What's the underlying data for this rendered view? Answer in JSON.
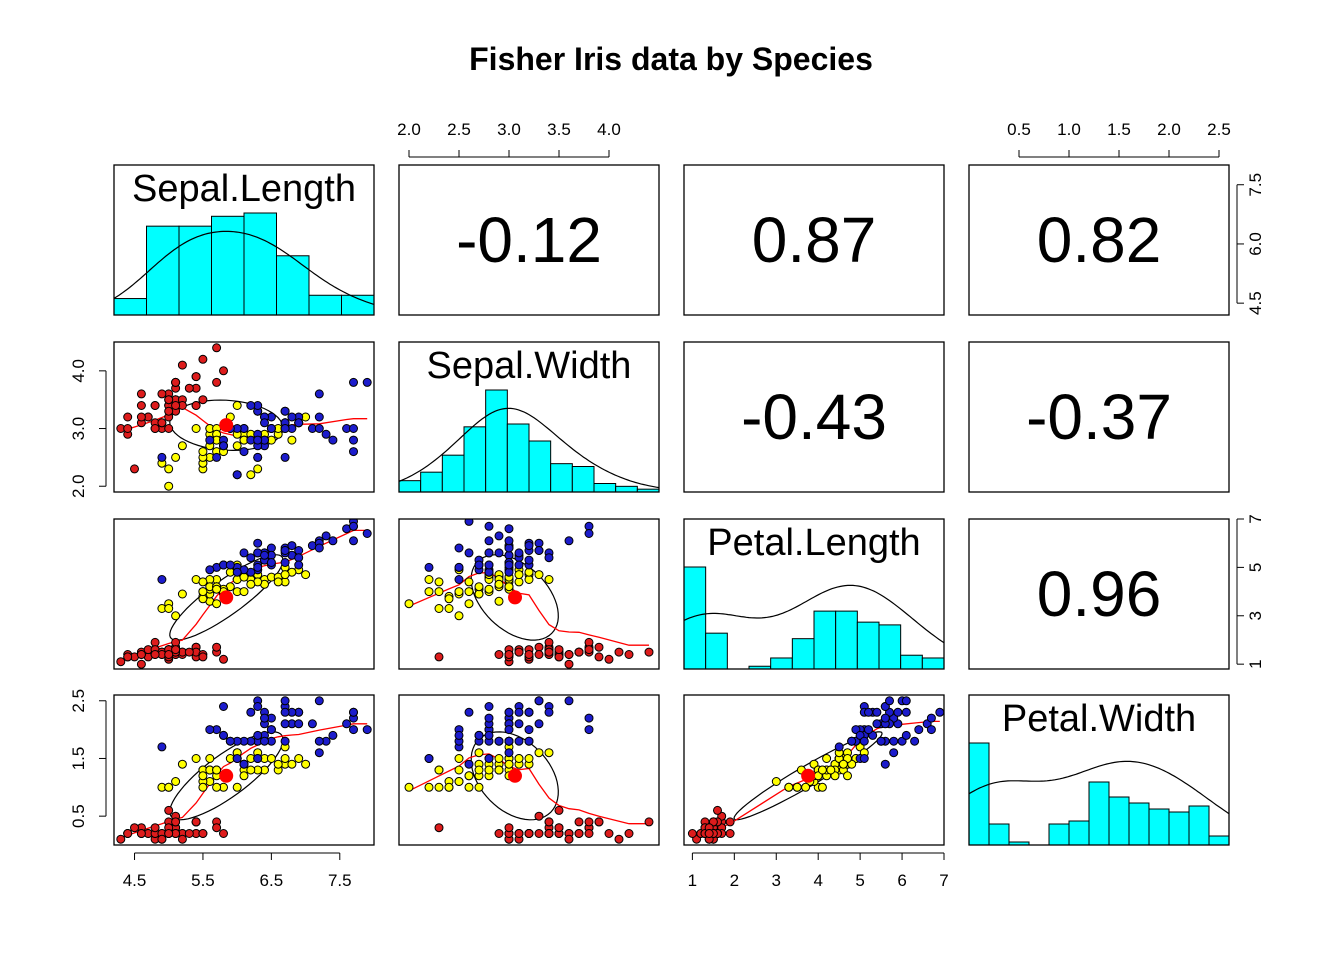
{
  "chart_data": {
    "type": "scatter",
    "title": "Fisher Iris data by Species",
    "colors": {
      "setosa": "#dd1c1c",
      "versicolor": "#ffff00",
      "virginica": "#1c1ccc",
      "hist_fill": "#00ffff",
      "centroid": "#ff0000",
      "smooth": "#ff0000",
      "frame": "#000000"
    },
    "variables": [
      "Sepal.Length",
      "Sepal.Width",
      "Petal.Length",
      "Petal.Width"
    ],
    "ranges": [
      [
        4.2,
        8.0
      ],
      [
        1.9,
        4.5
      ],
      [
        0.8,
        7.0
      ],
      [
        0.0,
        2.6
      ]
    ],
    "ticks": [
      [
        "4.5",
        "5.5",
        "6.5",
        "7.5"
      ],
      [
        "2.0",
        "2.5",
        "3.0",
        "3.5",
        "4.0"
      ],
      [
        "1",
        "2",
        "3",
        "4",
        "5",
        "6",
        "7"
      ],
      [
        "0.5",
        "1.0",
        "1.5",
        "2.0",
        "2.5"
      ]
    ],
    "left_ticks": {
      "row0": [
        "4.5",
        "6.0",
        "7.5"
      ],
      "row1": [
        "2.0",
        "3.0",
        "4.0"
      ],
      "row2": [
        "1",
        "3",
        "5",
        "7"
      ],
      "row3": [
        "0.5",
        "1.5",
        "2.5"
      ]
    },
    "correlations": [
      {
        "row": 0,
        "col": 1,
        "label": "-0.12"
      },
      {
        "row": 0,
        "col": 2,
        "label": "0.87"
      },
      {
        "row": 0,
        "col": 3,
        "label": "0.82"
      },
      {
        "row": 1,
        "col": 2,
        "label": "-0.43"
      },
      {
        "row": 1,
        "col": 3,
        "label": "-0.37"
      },
      {
        "row": 2,
        "col": 3,
        "label": "0.96"
      }
    ],
    "histograms": [
      {
        "breaks": [
          4.0,
          4.5,
          5.0,
          5.5,
          6.0,
          6.5,
          7.0,
          7.5,
          8.0
        ],
        "counts": [
          5,
          27,
          27,
          30,
          31,
          18,
          6,
          6
        ],
        "density_peak": 31
      },
      {
        "breaks": [
          2.0,
          2.2,
          2.4,
          2.6,
          2.8,
          3.0,
          3.2,
          3.4,
          3.6,
          3.8,
          4.0,
          4.2,
          4.4
        ],
        "counts": [
          4,
          7,
          13,
          23,
          36,
          24,
          18,
          10,
          9,
          3,
          2,
          1
        ]
      },
      {
        "breaks": [
          1.0,
          1.5,
          2.0,
          2.5,
          3.0,
          3.5,
          4.0,
          4.5,
          5.0,
          5.5,
          6.0,
          6.5,
          7.0
        ],
        "counts": [
          37,
          13,
          0,
          1,
          4,
          11,
          21,
          21,
          17,
          16,
          5,
          4
        ]
      },
      {
        "breaks": [
          0.0,
          0.2,
          0.4,
          0.6,
          0.8,
          1.0,
          1.2,
          1.4,
          1.6,
          1.8,
          2.0,
          2.2,
          2.4,
          2.6
        ],
        "counts": [
          34,
          7,
          1,
          0,
          7,
          8,
          21,
          16,
          14,
          12,
          11,
          13,
          3
        ]
      }
    ],
    "means": [
      5.84,
      3.06,
      3.76,
      1.2
    ],
    "points": {
      "setosa": [
        [
          5.1,
          3.5,
          1.4,
          0.2
        ],
        [
          4.9,
          3.0,
          1.4,
          0.2
        ],
        [
          4.7,
          3.2,
          1.3,
          0.2
        ],
        [
          4.6,
          3.1,
          1.5,
          0.2
        ],
        [
          5.0,
          3.6,
          1.4,
          0.2
        ],
        [
          5.4,
          3.9,
          1.7,
          0.4
        ],
        [
          4.6,
          3.4,
          1.4,
          0.3
        ],
        [
          5.0,
          3.4,
          1.5,
          0.2
        ],
        [
          4.4,
          2.9,
          1.4,
          0.2
        ],
        [
          4.9,
          3.1,
          1.5,
          0.1
        ],
        [
          5.4,
          3.7,
          1.5,
          0.2
        ],
        [
          4.8,
          3.4,
          1.6,
          0.2
        ],
        [
          4.8,
          3.0,
          1.4,
          0.1
        ],
        [
          4.3,
          3.0,
          1.1,
          0.1
        ],
        [
          5.8,
          4.0,
          1.2,
          0.2
        ],
        [
          5.7,
          4.4,
          1.5,
          0.4
        ],
        [
          5.4,
          3.9,
          1.3,
          0.4
        ],
        [
          5.1,
          3.5,
          1.4,
          0.3
        ],
        [
          5.7,
          3.8,
          1.7,
          0.3
        ],
        [
          5.1,
          3.8,
          1.5,
          0.3
        ],
        [
          5.4,
          3.4,
          1.7,
          0.2
        ],
        [
          5.1,
          3.7,
          1.5,
          0.4
        ],
        [
          4.6,
          3.6,
          1.0,
          0.2
        ],
        [
          5.1,
          3.3,
          1.7,
          0.5
        ],
        [
          4.8,
          3.4,
          1.9,
          0.2
        ],
        [
          5.0,
          3.0,
          1.6,
          0.2
        ],
        [
          5.0,
          3.4,
          1.6,
          0.4
        ],
        [
          5.2,
          3.5,
          1.5,
          0.2
        ],
        [
          5.2,
          3.4,
          1.4,
          0.2
        ],
        [
          4.7,
          3.2,
          1.6,
          0.2
        ],
        [
          4.8,
          3.1,
          1.6,
          0.2
        ],
        [
          5.4,
          3.4,
          1.5,
          0.4
        ],
        [
          5.2,
          4.1,
          1.5,
          0.1
        ],
        [
          5.5,
          4.2,
          1.4,
          0.2
        ],
        [
          4.9,
          3.1,
          1.5,
          0.2
        ],
        [
          5.0,
          3.2,
          1.2,
          0.2
        ],
        [
          5.5,
          3.5,
          1.3,
          0.2
        ],
        [
          4.9,
          3.6,
          1.4,
          0.1
        ],
        [
          4.4,
          3.0,
          1.3,
          0.2
        ],
        [
          5.1,
          3.4,
          1.5,
          0.2
        ],
        [
          5.0,
          3.5,
          1.3,
          0.3
        ],
        [
          4.5,
          2.3,
          1.3,
          0.3
        ],
        [
          4.4,
          3.2,
          1.3,
          0.2
        ],
        [
          5.0,
          3.5,
          1.6,
          0.6
        ],
        [
          5.1,
          3.8,
          1.9,
          0.4
        ],
        [
          4.8,
          3.0,
          1.4,
          0.3
        ],
        [
          5.1,
          3.8,
          1.6,
          0.2
        ],
        [
          4.6,
          3.2,
          1.4,
          0.2
        ],
        [
          5.3,
          3.7,
          1.5,
          0.2
        ],
        [
          5.0,
          3.3,
          1.4,
          0.2
        ]
      ],
      "versicolor": [
        [
          7.0,
          3.2,
          4.7,
          1.4
        ],
        [
          6.4,
          3.2,
          4.5,
          1.5
        ],
        [
          6.9,
          3.1,
          4.9,
          1.5
        ],
        [
          5.5,
          2.3,
          4.0,
          1.3
        ],
        [
          6.5,
          2.8,
          4.6,
          1.5
        ],
        [
          5.7,
          2.8,
          4.5,
          1.3
        ],
        [
          6.3,
          3.3,
          4.7,
          1.6
        ],
        [
          4.9,
          2.4,
          3.3,
          1.0
        ],
        [
          6.6,
          2.9,
          4.6,
          1.3
        ],
        [
          5.2,
          2.7,
          3.9,
          1.4
        ],
        [
          5.0,
          2.0,
          3.5,
          1.0
        ],
        [
          5.9,
          3.0,
          4.2,
          1.5
        ],
        [
          6.0,
          2.2,
          4.0,
          1.0
        ],
        [
          6.1,
          2.9,
          4.7,
          1.4
        ],
        [
          5.6,
          2.9,
          3.6,
          1.3
        ],
        [
          6.7,
          3.1,
          4.4,
          1.4
        ],
        [
          5.6,
          3.0,
          4.5,
          1.5
        ],
        [
          5.8,
          2.7,
          4.1,
          1.0
        ],
        [
          6.2,
          2.2,
          4.5,
          1.5
        ],
        [
          5.6,
          2.5,
          3.9,
          1.1
        ],
        [
          5.9,
          3.2,
          4.8,
          1.8
        ],
        [
          6.1,
          2.8,
          4.0,
          1.3
        ],
        [
          6.3,
          2.5,
          4.9,
          1.5
        ],
        [
          6.1,
          2.8,
          4.7,
          1.2
        ],
        [
          6.4,
          2.9,
          4.3,
          1.3
        ],
        [
          6.6,
          3.0,
          4.4,
          1.4
        ],
        [
          6.8,
          2.8,
          4.8,
          1.4
        ],
        [
          6.7,
          3.0,
          5.0,
          1.7
        ],
        [
          6.0,
          2.9,
          4.5,
          1.5
        ],
        [
          5.7,
          2.6,
          3.5,
          1.0
        ],
        [
          5.5,
          2.4,
          3.8,
          1.1
        ],
        [
          5.5,
          2.4,
          3.7,
          1.0
        ],
        [
          5.8,
          2.7,
          3.9,
          1.2
        ],
        [
          6.0,
          2.7,
          5.1,
          1.6
        ],
        [
          5.4,
          3.0,
          4.5,
          1.5
        ],
        [
          6.0,
          3.4,
          4.5,
          1.6
        ],
        [
          6.7,
          3.1,
          4.7,
          1.5
        ],
        [
          6.3,
          2.3,
          4.4,
          1.3
        ],
        [
          5.6,
          3.0,
          4.1,
          1.3
        ],
        [
          5.5,
          2.5,
          4.0,
          1.3
        ],
        [
          5.5,
          2.6,
          4.4,
          1.2
        ],
        [
          6.1,
          3.0,
          4.6,
          1.4
        ],
        [
          5.8,
          2.6,
          4.0,
          1.2
        ],
        [
          5.0,
          2.3,
          3.3,
          1.0
        ],
        [
          5.6,
          2.7,
          4.2,
          1.3
        ],
        [
          5.7,
          3.0,
          4.2,
          1.2
        ],
        [
          5.7,
          2.9,
          4.2,
          1.3
        ],
        [
          6.2,
          2.9,
          4.3,
          1.3
        ],
        [
          5.1,
          2.5,
          3.0,
          1.1
        ],
        [
          5.7,
          2.8,
          4.1,
          1.3
        ]
      ],
      "virginica": [
        [
          6.3,
          3.3,
          6.0,
          2.5
        ],
        [
          5.8,
          2.7,
          5.1,
          1.9
        ],
        [
          7.1,
          3.0,
          5.9,
          2.1
        ],
        [
          6.3,
          2.9,
          5.6,
          1.8
        ],
        [
          6.5,
          3.0,
          5.8,
          2.2
        ],
        [
          7.6,
          3.0,
          6.6,
          2.1
        ],
        [
          4.9,
          2.5,
          4.5,
          1.7
        ],
        [
          7.3,
          2.9,
          6.3,
          1.8
        ],
        [
          6.7,
          2.5,
          5.8,
          1.8
        ],
        [
          7.2,
          3.6,
          6.1,
          2.5
        ],
        [
          6.5,
          3.2,
          5.1,
          2.0
        ],
        [
          6.4,
          2.7,
          5.3,
          1.9
        ],
        [
          6.8,
          3.0,
          5.5,
          2.1
        ],
        [
          5.7,
          2.5,
          5.0,
          2.0
        ],
        [
          5.8,
          2.8,
          5.1,
          2.4
        ],
        [
          6.4,
          3.2,
          5.3,
          2.3
        ],
        [
          6.5,
          3.0,
          5.5,
          1.8
        ],
        [
          7.7,
          3.8,
          6.7,
          2.2
        ],
        [
          7.7,
          2.6,
          6.9,
          2.3
        ],
        [
          6.0,
          2.2,
          5.0,
          1.5
        ],
        [
          6.9,
          3.2,
          5.7,
          2.3
        ],
        [
          5.6,
          2.8,
          4.9,
          2.0
        ],
        [
          7.7,
          2.8,
          6.7,
          2.0
        ],
        [
          6.3,
          2.7,
          4.9,
          1.8
        ],
        [
          6.7,
          3.3,
          5.7,
          2.1
        ],
        [
          7.2,
          3.2,
          6.0,
          1.8
        ],
        [
          6.2,
          2.8,
          4.8,
          1.8
        ],
        [
          6.1,
          3.0,
          4.9,
          1.8
        ],
        [
          6.4,
          2.8,
          5.6,
          2.1
        ],
        [
          7.2,
          3.0,
          5.8,
          1.6
        ],
        [
          7.4,
          2.8,
          6.1,
          1.9
        ],
        [
          7.9,
          3.8,
          6.4,
          2.0
        ],
        [
          6.4,
          2.8,
          5.6,
          2.2
        ],
        [
          6.3,
          2.8,
          5.1,
          1.5
        ],
        [
          6.1,
          2.6,
          5.6,
          1.4
        ],
        [
          7.7,
          3.0,
          6.1,
          2.3
        ],
        [
          6.3,
          3.4,
          5.6,
          2.4
        ],
        [
          6.4,
          3.1,
          5.5,
          1.8
        ],
        [
          6.0,
          3.0,
          4.8,
          1.8
        ],
        [
          6.9,
          3.1,
          5.4,
          2.1
        ],
        [
          6.7,
          3.1,
          5.6,
          2.4
        ],
        [
          6.9,
          3.1,
          5.1,
          2.3
        ],
        [
          5.8,
          2.7,
          5.1,
          1.9
        ],
        [
          6.8,
          3.2,
          5.9,
          2.3
        ],
        [
          6.7,
          3.3,
          5.7,
          2.5
        ],
        [
          6.7,
          3.0,
          5.2,
          2.3
        ],
        [
          6.3,
          2.5,
          5.0,
          1.9
        ],
        [
          6.5,
          3.0,
          5.2,
          2.0
        ],
        [
          6.2,
          3.4,
          5.4,
          2.3
        ],
        [
          5.9,
          3.0,
          5.1,
          1.8
        ]
      ]
    }
  }
}
